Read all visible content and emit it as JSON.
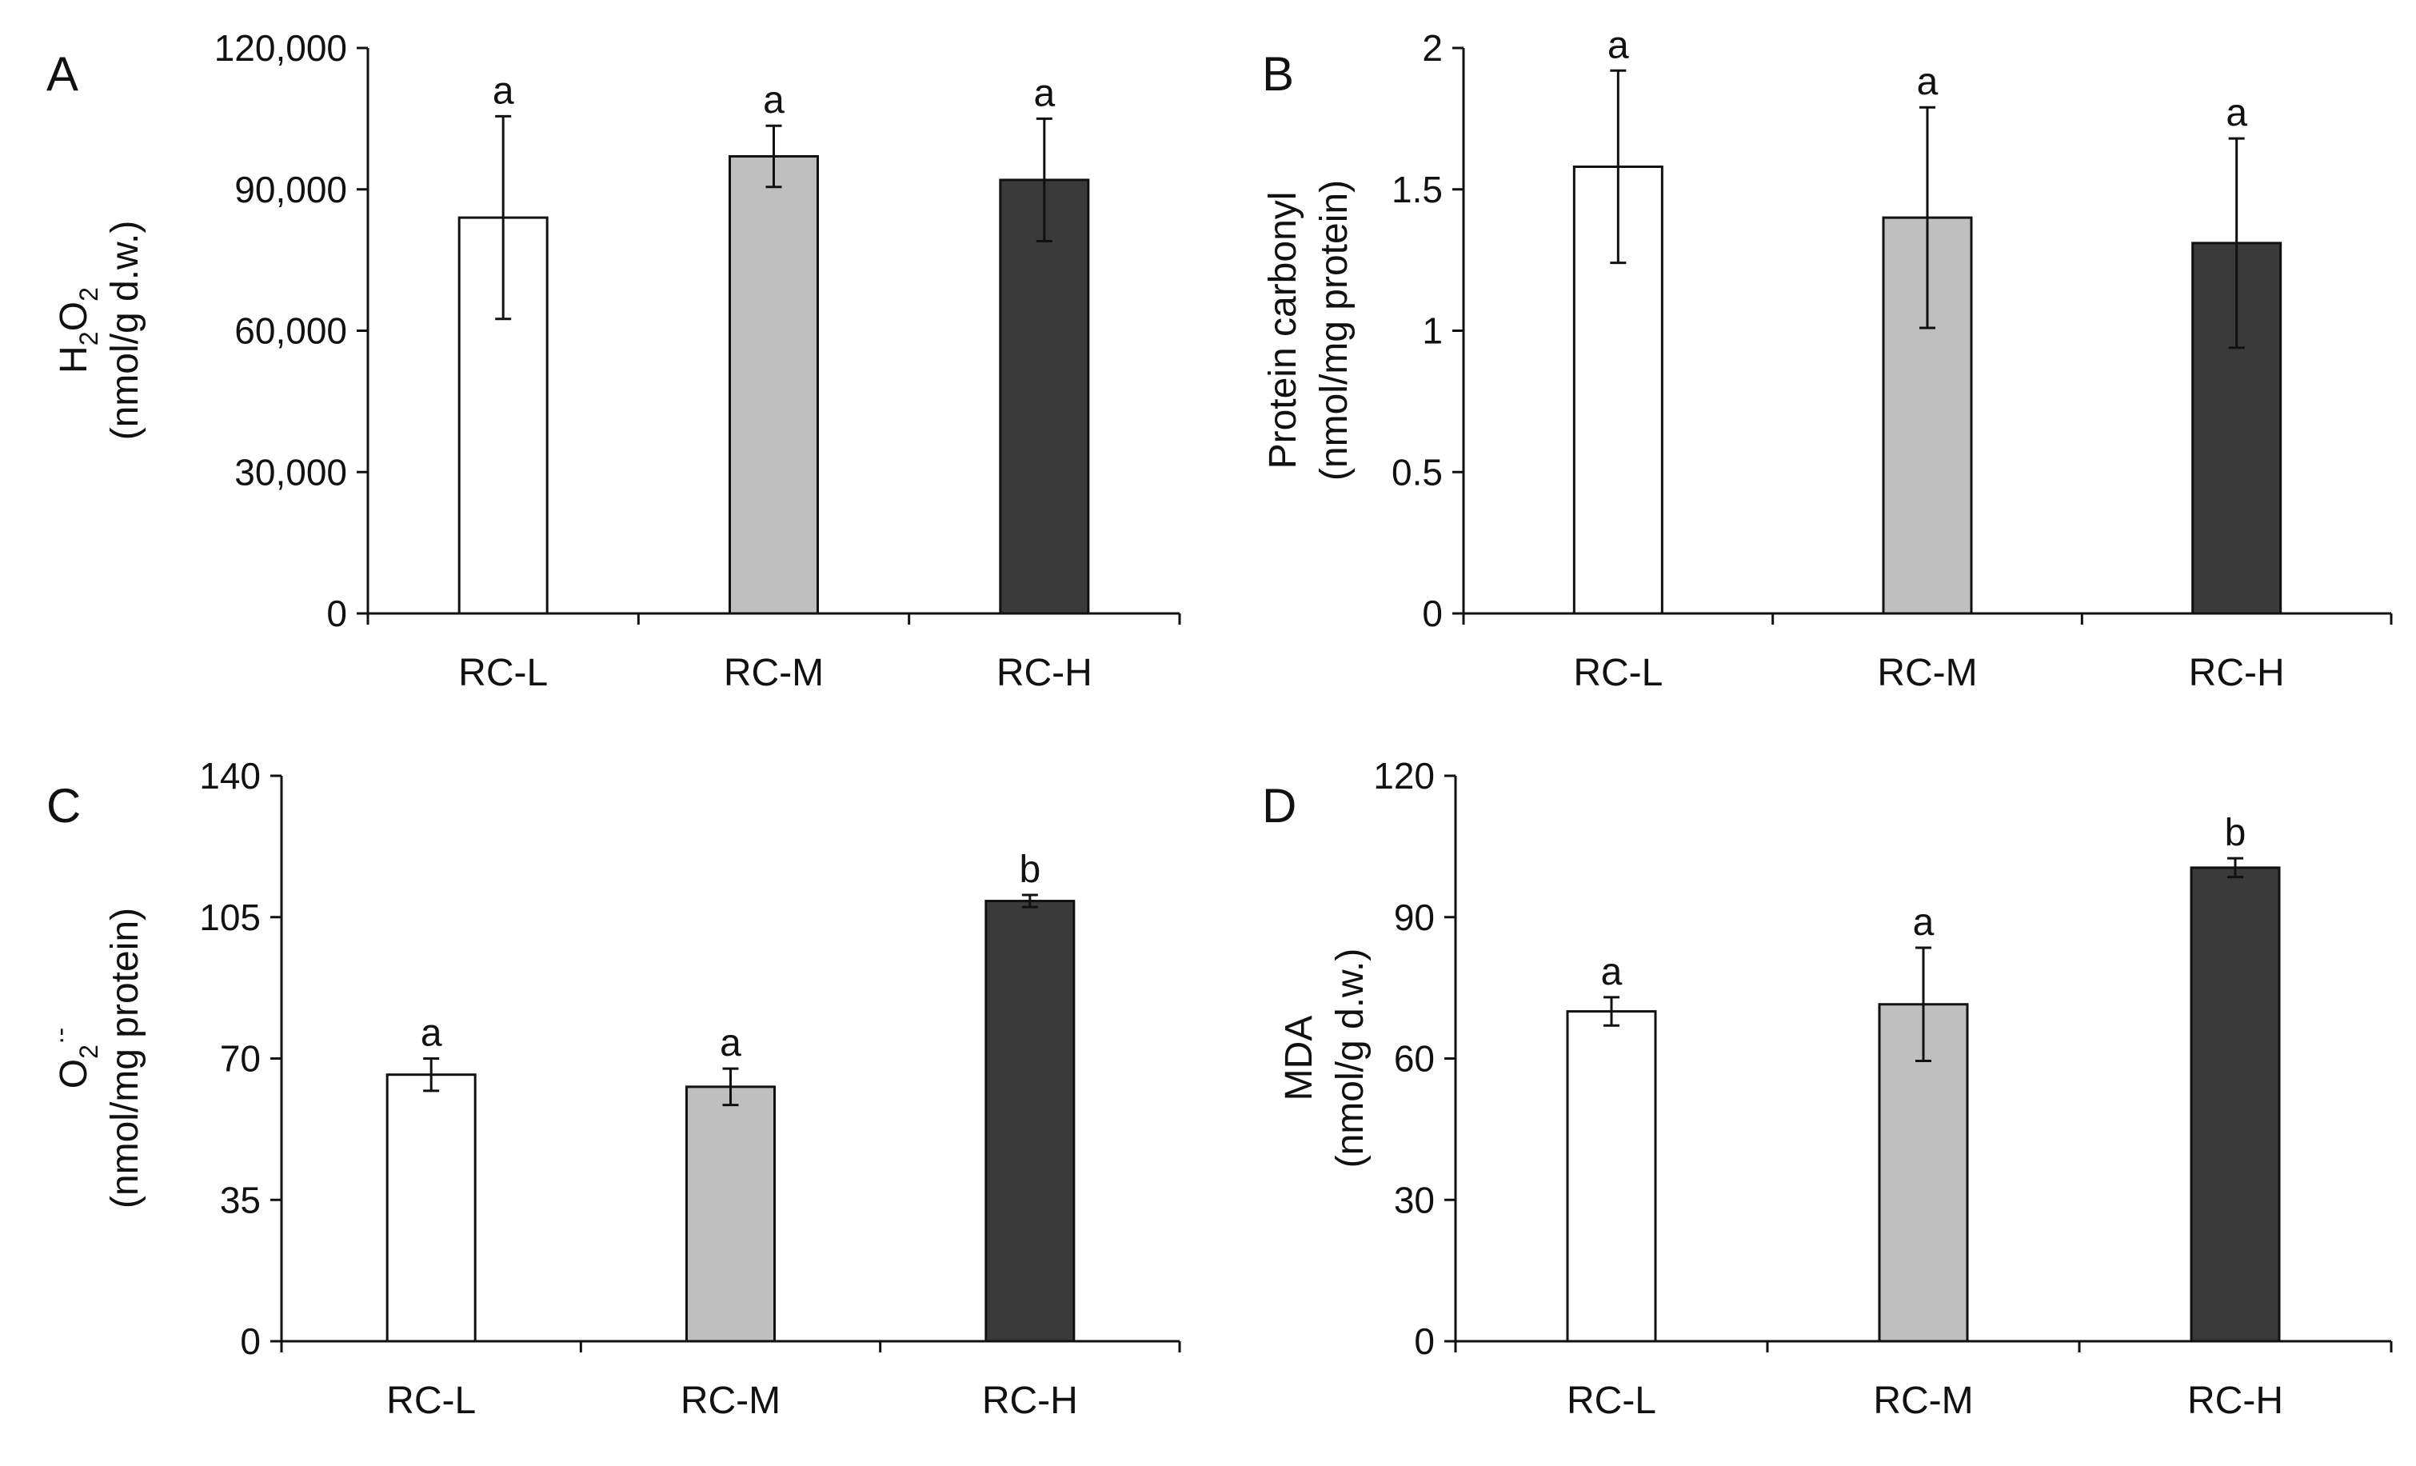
{
  "chart_data": [
    {
      "type": "bar",
      "panel": "A",
      "ylabel_main": "H2O2",
      "ylabel_parts": [
        "H",
        "2",
        "O",
        "2"
      ],
      "ylabel_unit": "(nmol/g d.w.)",
      "categories": [
        "RC-L",
        "RC-M",
        "RC-H"
      ],
      "values": [
        84000,
        97000,
        92000
      ],
      "errors": [
        21500,
        6500,
        13000
      ],
      "letters": [
        "a",
        "a",
        "a"
      ],
      "ylim": [
        0,
        120000
      ],
      "yticks": [
        0,
        30000,
        60000,
        90000,
        120000
      ],
      "ytick_labels": [
        "0",
        "30,000",
        "60,000",
        "90,000",
        "120,000"
      ],
      "colors": [
        "#ffffff",
        "#bfbfbf",
        "#3a3a3a"
      ]
    },
    {
      "type": "bar",
      "panel": "B",
      "ylabel_main": "Protein carbonyl",
      "ylabel_unit": "(nmol/mg protein)",
      "categories": [
        "RC-L",
        "RC-M",
        "RC-H"
      ],
      "values": [
        1.58,
        1.4,
        1.31
      ],
      "errors": [
        0.34,
        0.39,
        0.37
      ],
      "letters": [
        "a",
        "a",
        "a"
      ],
      "ylim": [
        0,
        2
      ],
      "yticks": [
        0,
        0.5,
        1,
        1.5,
        2
      ],
      "ytick_labels": [
        "0",
        "0.5",
        "1",
        "1.5",
        "2"
      ],
      "colors": [
        "#ffffff",
        "#bfbfbf",
        "#3a3a3a"
      ]
    },
    {
      "type": "bar",
      "panel": "C",
      "ylabel_main": "O2·-",
      "ylabel_parts": [
        "O",
        "2",
        "·-"
      ],
      "ylabel_unit": "(nmol/mg protein)",
      "categories": [
        "RC-L",
        "RC-M",
        "RC-H"
      ],
      "values": [
        66,
        63,
        109
      ],
      "errors": [
        4,
        4.5,
        1.5
      ],
      "letters": [
        "a",
        "a",
        "b"
      ],
      "ylim": [
        0,
        140
      ],
      "yticks": [
        0,
        35,
        70,
        105,
        140
      ],
      "ytick_labels": [
        "0",
        "35",
        "70",
        "105",
        "140"
      ],
      "colors": [
        "#ffffff",
        "#bfbfbf",
        "#3a3a3a"
      ]
    },
    {
      "type": "bar",
      "panel": "D",
      "ylabel_main": "MDA",
      "ylabel_unit": "(nmol/g d.w.)",
      "categories": [
        "RC-L",
        "RC-M",
        "RC-H"
      ],
      "values": [
        70,
        71.5,
        100.5
      ],
      "errors": [
        3,
        12,
        2
      ],
      "letters": [
        "a",
        "a",
        "b"
      ],
      "ylim": [
        0,
        120
      ],
      "yticks": [
        0,
        30,
        60,
        90,
        120
      ],
      "ytick_labels": [
        "0",
        "30",
        "60",
        "90",
        "120"
      ],
      "colors": [
        "#ffffff",
        "#bfbfbf",
        "#3a3a3a"
      ]
    }
  ]
}
